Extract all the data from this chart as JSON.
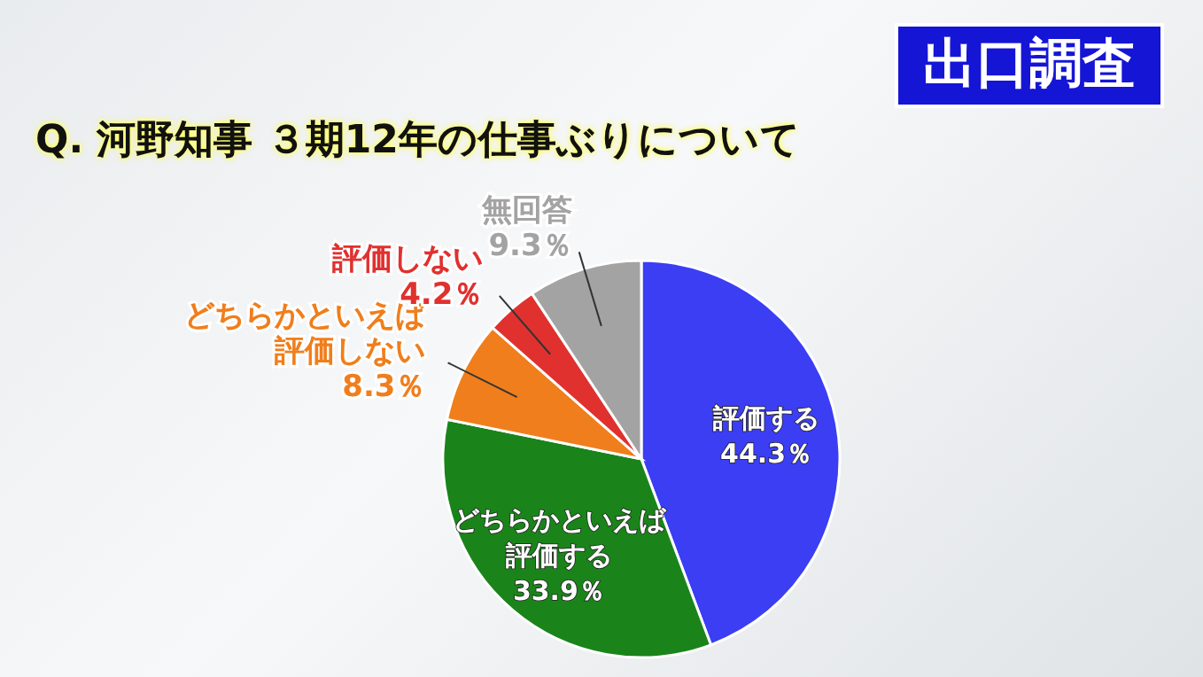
{
  "chart_data": {
    "type": "pie",
    "title": "Q. 河野知事  ３期12年の仕事ぶりについて",
    "subtitle": "出口調査",
    "categories": [
      "評価する",
      "どちらかといえば評価する",
      "どちらかといえば評価しない",
      "評価しない",
      "無回答"
    ],
    "values": [
      44.3,
      33.9,
      8.3,
      4.2,
      9.3
    ],
    "colors": [
      "#3b3ef2",
      "#1a841a",
      "#f07e1c",
      "#e0312f",
      "#a3a3a3"
    ],
    "value_labels": [
      "44.3％",
      "33.9％",
      "8.3％",
      "4.2％",
      "9.3％"
    ]
  }
}
